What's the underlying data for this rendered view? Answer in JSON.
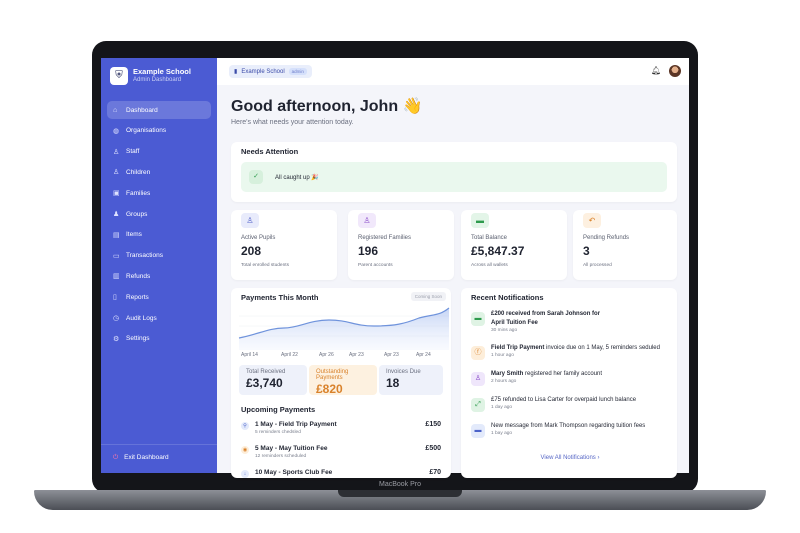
{
  "device": {
    "label": "MacBook Pro"
  },
  "sidebar": {
    "school": "Example School",
    "subtitle": "Admin Dashboard",
    "items": [
      {
        "label": "Dashboard",
        "icon": "home-icon"
      },
      {
        "label": "Organisations",
        "icon": "globe-icon"
      },
      {
        "label": "Staff",
        "icon": "users-icon"
      },
      {
        "label": "Children",
        "icon": "users-icon"
      },
      {
        "label": "Families",
        "icon": "family-icon"
      },
      {
        "label": "Groups",
        "icon": "group-icon"
      },
      {
        "label": "Items",
        "icon": "box-icon"
      },
      {
        "label": "Transactions",
        "icon": "card-icon"
      },
      {
        "label": "Refunds",
        "icon": "refund-icon"
      },
      {
        "label": "Reports",
        "icon": "chart-icon"
      },
      {
        "label": "Audit Logs",
        "icon": "clock-icon"
      },
      {
        "label": "Settings",
        "icon": "gear-icon"
      }
    ],
    "exit": "Exit Dashboard"
  },
  "topbar": {
    "school": "Example School",
    "role": "admin"
  },
  "greeting": {
    "title": "Good afternoon, John 👋",
    "subtitle": "Here's what needs your attention today."
  },
  "attention": {
    "title": "Needs Attention",
    "message": "All caught up 🎉"
  },
  "stats": [
    {
      "label": "Active Pupils",
      "value": "208",
      "desc": "Total enrolled students",
      "color": "#e8ebfb"
    },
    {
      "label": "Registered Families",
      "value": "196",
      "desc": "Parent accounts",
      "color": "#f1e8fb"
    },
    {
      "label": "Total Balance",
      "value": "£5,847.37",
      "desc": "Across all wallets",
      "color": "#e3f5e8"
    },
    {
      "label": "Pending Refunds",
      "value": "3",
      "desc": "All processed",
      "color": "#fdf0e0"
    }
  ],
  "payments": {
    "title": "Payments This Month",
    "badge": "Coming Soon",
    "x_labels": [
      "April 14",
      "April 22",
      "Apr 26",
      "Apr 23",
      "Apr 23",
      "Apr 24"
    ],
    "totals": [
      {
        "label": "Total Received",
        "value": "£3,740"
      },
      {
        "label": "Outstanding Payments",
        "value": "£820"
      },
      {
        "label": "Invoices Due",
        "value": "18"
      }
    ]
  },
  "upcoming": {
    "title": "Upcoming Payments",
    "items": [
      {
        "title": "1 May - Field Trip Payment",
        "sub": "5 reminders chedsled",
        "amount": "£150"
      },
      {
        "title": "5 May - May Tuition Fee",
        "sub": "12 reminders scheduled",
        "amount": "£500"
      },
      {
        "title": "10 May - Sports Club Fee",
        "sub": "",
        "amount": "£70"
      }
    ]
  },
  "notifications": {
    "title": "Recent Notifications",
    "items": [
      {
        "bold": "£200 received from Sarah Johnson for April Tuition Fee",
        "text": "",
        "time": "30 mins ago"
      },
      {
        "bold": "Field Trip Payment",
        "text": " invoice due on 1 May, 5 reminders seduled",
        "time": "1 hour ago"
      },
      {
        "bold": "Mary Smith",
        "text": " registered her family account",
        "time": "2 hours ago"
      },
      {
        "bold": "",
        "text": "£75 refunded to Lisa Carter for overpaid lunch balance",
        "time": "1 day ago"
      },
      {
        "bold": "",
        "text": "New message from Mark Thompson regarding tuition fees",
        "time": "1 bay ago"
      }
    ],
    "view_all": "View All Notifications ›"
  }
}
